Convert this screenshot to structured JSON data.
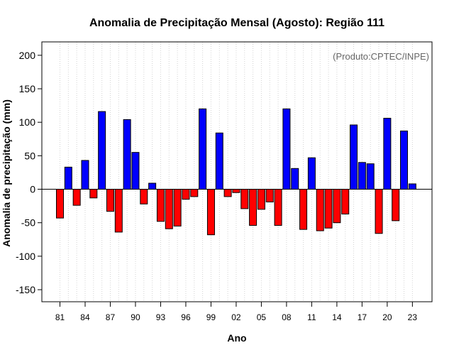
{
  "chart_data": {
    "type": "bar",
    "title": "Anomalia de Precipitação Mensal (Agosto): Região 111",
    "xlabel": "Ano",
    "ylabel": "Anomalia de precipitação (mm)",
    "credit": "(Produto:CPTEC/INPE)",
    "ylim": [
      -168,
      220
    ],
    "yticks": [
      -150,
      -100,
      -50,
      0,
      50,
      100,
      150,
      200
    ],
    "years": [
      1981,
      1982,
      1983,
      1984,
      1985,
      1986,
      1987,
      1988,
      1989,
      1990,
      1991,
      1992,
      1993,
      1994,
      1995,
      1996,
      1997,
      1998,
      1999,
      2000,
      2001,
      2002,
      2003,
      2004,
      2005,
      2006,
      2007,
      2008,
      2009,
      2010,
      2011,
      2012,
      2013,
      2014,
      2015,
      2016,
      2017,
      2018,
      2019,
      2020,
      2021,
      2022,
      2023
    ],
    "xtick_labels": [
      {
        "year": 1981,
        "label": "81"
      },
      {
        "year": 1984,
        "label": "84"
      },
      {
        "year": 1987,
        "label": "87"
      },
      {
        "year": 1990,
        "label": "90"
      },
      {
        "year": 1993,
        "label": "93"
      },
      {
        "year": 1996,
        "label": "96"
      },
      {
        "year": 1999,
        "label": "99"
      },
      {
        "year": 2002,
        "label": "02"
      },
      {
        "year": 2005,
        "label": "05"
      },
      {
        "year": 2008,
        "label": "08"
      },
      {
        "year": 2011,
        "label": "11"
      },
      {
        "year": 2014,
        "label": "14"
      },
      {
        "year": 2017,
        "label": "17"
      },
      {
        "year": 2020,
        "label": "20"
      },
      {
        "year": 2023,
        "label": "23"
      }
    ],
    "values": [
      -43,
      33,
      -24,
      43,
      -13,
      116,
      -33,
      -64,
      104,
      55,
      -22,
      9,
      -48,
      -59,
      -55,
      -15,
      -11,
      120,
      -68,
      84,
      -11,
      -5,
      -29,
      -54,
      -30,
      -19,
      -54,
      120,
      31,
      -60,
      47,
      -62,
      -58,
      -50,
      -37,
      96,
      40,
      38,
      -66,
      106,
      -47,
      87,
      8
    ],
    "colors": {
      "positive": "#0000ff",
      "negative": "#ff0000",
      "grid": "#d3d3d3",
      "axis": "#000000"
    }
  }
}
